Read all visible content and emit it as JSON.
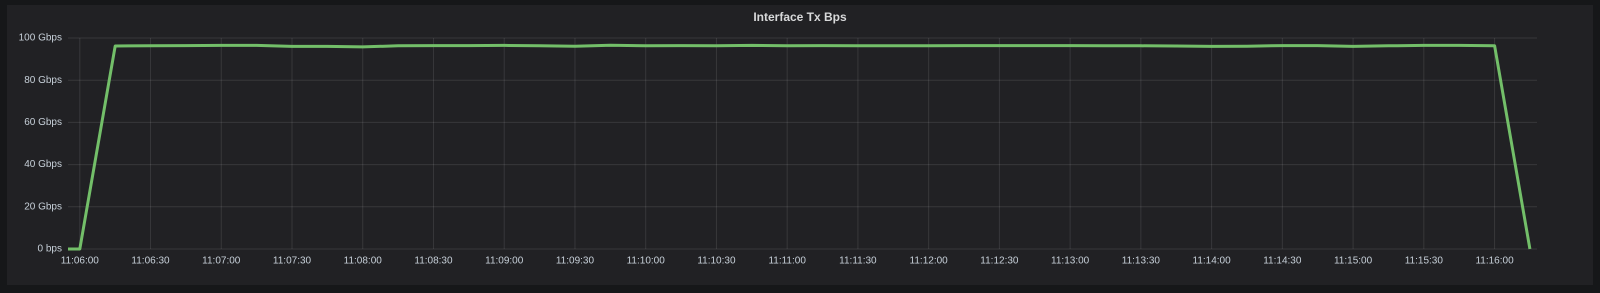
{
  "chart_data": {
    "type": "line",
    "title": "Interface Tx Bps",
    "x": [
      "11:05:55",
      "11:06:00",
      "11:06:15",
      "11:06:30",
      "11:06:45",
      "11:07:00",
      "11:07:15",
      "11:07:30",
      "11:07:45",
      "11:08:00",
      "11:08:15",
      "11:08:30",
      "11:08:45",
      "11:09:00",
      "11:09:15",
      "11:09:30",
      "11:09:45",
      "11:10:00",
      "11:10:15",
      "11:10:30",
      "11:10:45",
      "11:11:00",
      "11:11:15",
      "11:11:30",
      "11:11:45",
      "11:12:00",
      "11:12:15",
      "11:12:30",
      "11:12:45",
      "11:13:00",
      "11:13:15",
      "11:13:30",
      "11:13:45",
      "11:14:00",
      "11:14:15",
      "11:14:30",
      "11:14:45",
      "11:15:00",
      "11:15:15",
      "11:15:30",
      "11:15:45",
      "11:16:00",
      "11:16:15"
    ],
    "values": [
      0,
      0,
      96.2,
      96.3,
      96.4,
      96.5,
      96.5,
      96.0,
      96.0,
      95.8,
      96.3,
      96.4,
      96.4,
      96.5,
      96.3,
      96.1,
      96.6,
      96.3,
      96.4,
      96.3,
      96.5,
      96.3,
      96.4,
      96.3,
      96.3,
      96.3,
      96.4,
      96.4,
      96.4,
      96.4,
      96.3,
      96.3,
      96.2,
      96.0,
      96.1,
      96.4,
      96.4,
      96.0,
      96.3,
      96.5,
      96.5,
      96.3,
      0
    ],
    "color": "#73bf69",
    "xlim": [
      "11:05:55",
      "11:16:18"
    ],
    "xticks": [
      "11:06:00",
      "11:06:30",
      "11:07:00",
      "11:07:30",
      "11:08:00",
      "11:08:30",
      "11:09:00",
      "11:09:30",
      "11:10:00",
      "11:10:30",
      "11:11:00",
      "11:11:30",
      "11:12:00",
      "11:12:30",
      "11:13:00",
      "11:13:30",
      "11:14:00",
      "11:14:30",
      "11:15:00",
      "11:15:30",
      "11:16:00"
    ],
    "ylim": [
      0,
      100
    ],
    "yticks": [
      {
        "value": 0,
        "label": "0 bps"
      },
      {
        "value": 20,
        "label": "20 Gbps"
      },
      {
        "value": 40,
        "label": "40 Gbps"
      },
      {
        "value": 60,
        "label": "60 Gbps"
      },
      {
        "value": 80,
        "label": "80 Gbps"
      },
      {
        "value": 100,
        "label": "100 Gbps"
      }
    ],
    "grid": true
  }
}
